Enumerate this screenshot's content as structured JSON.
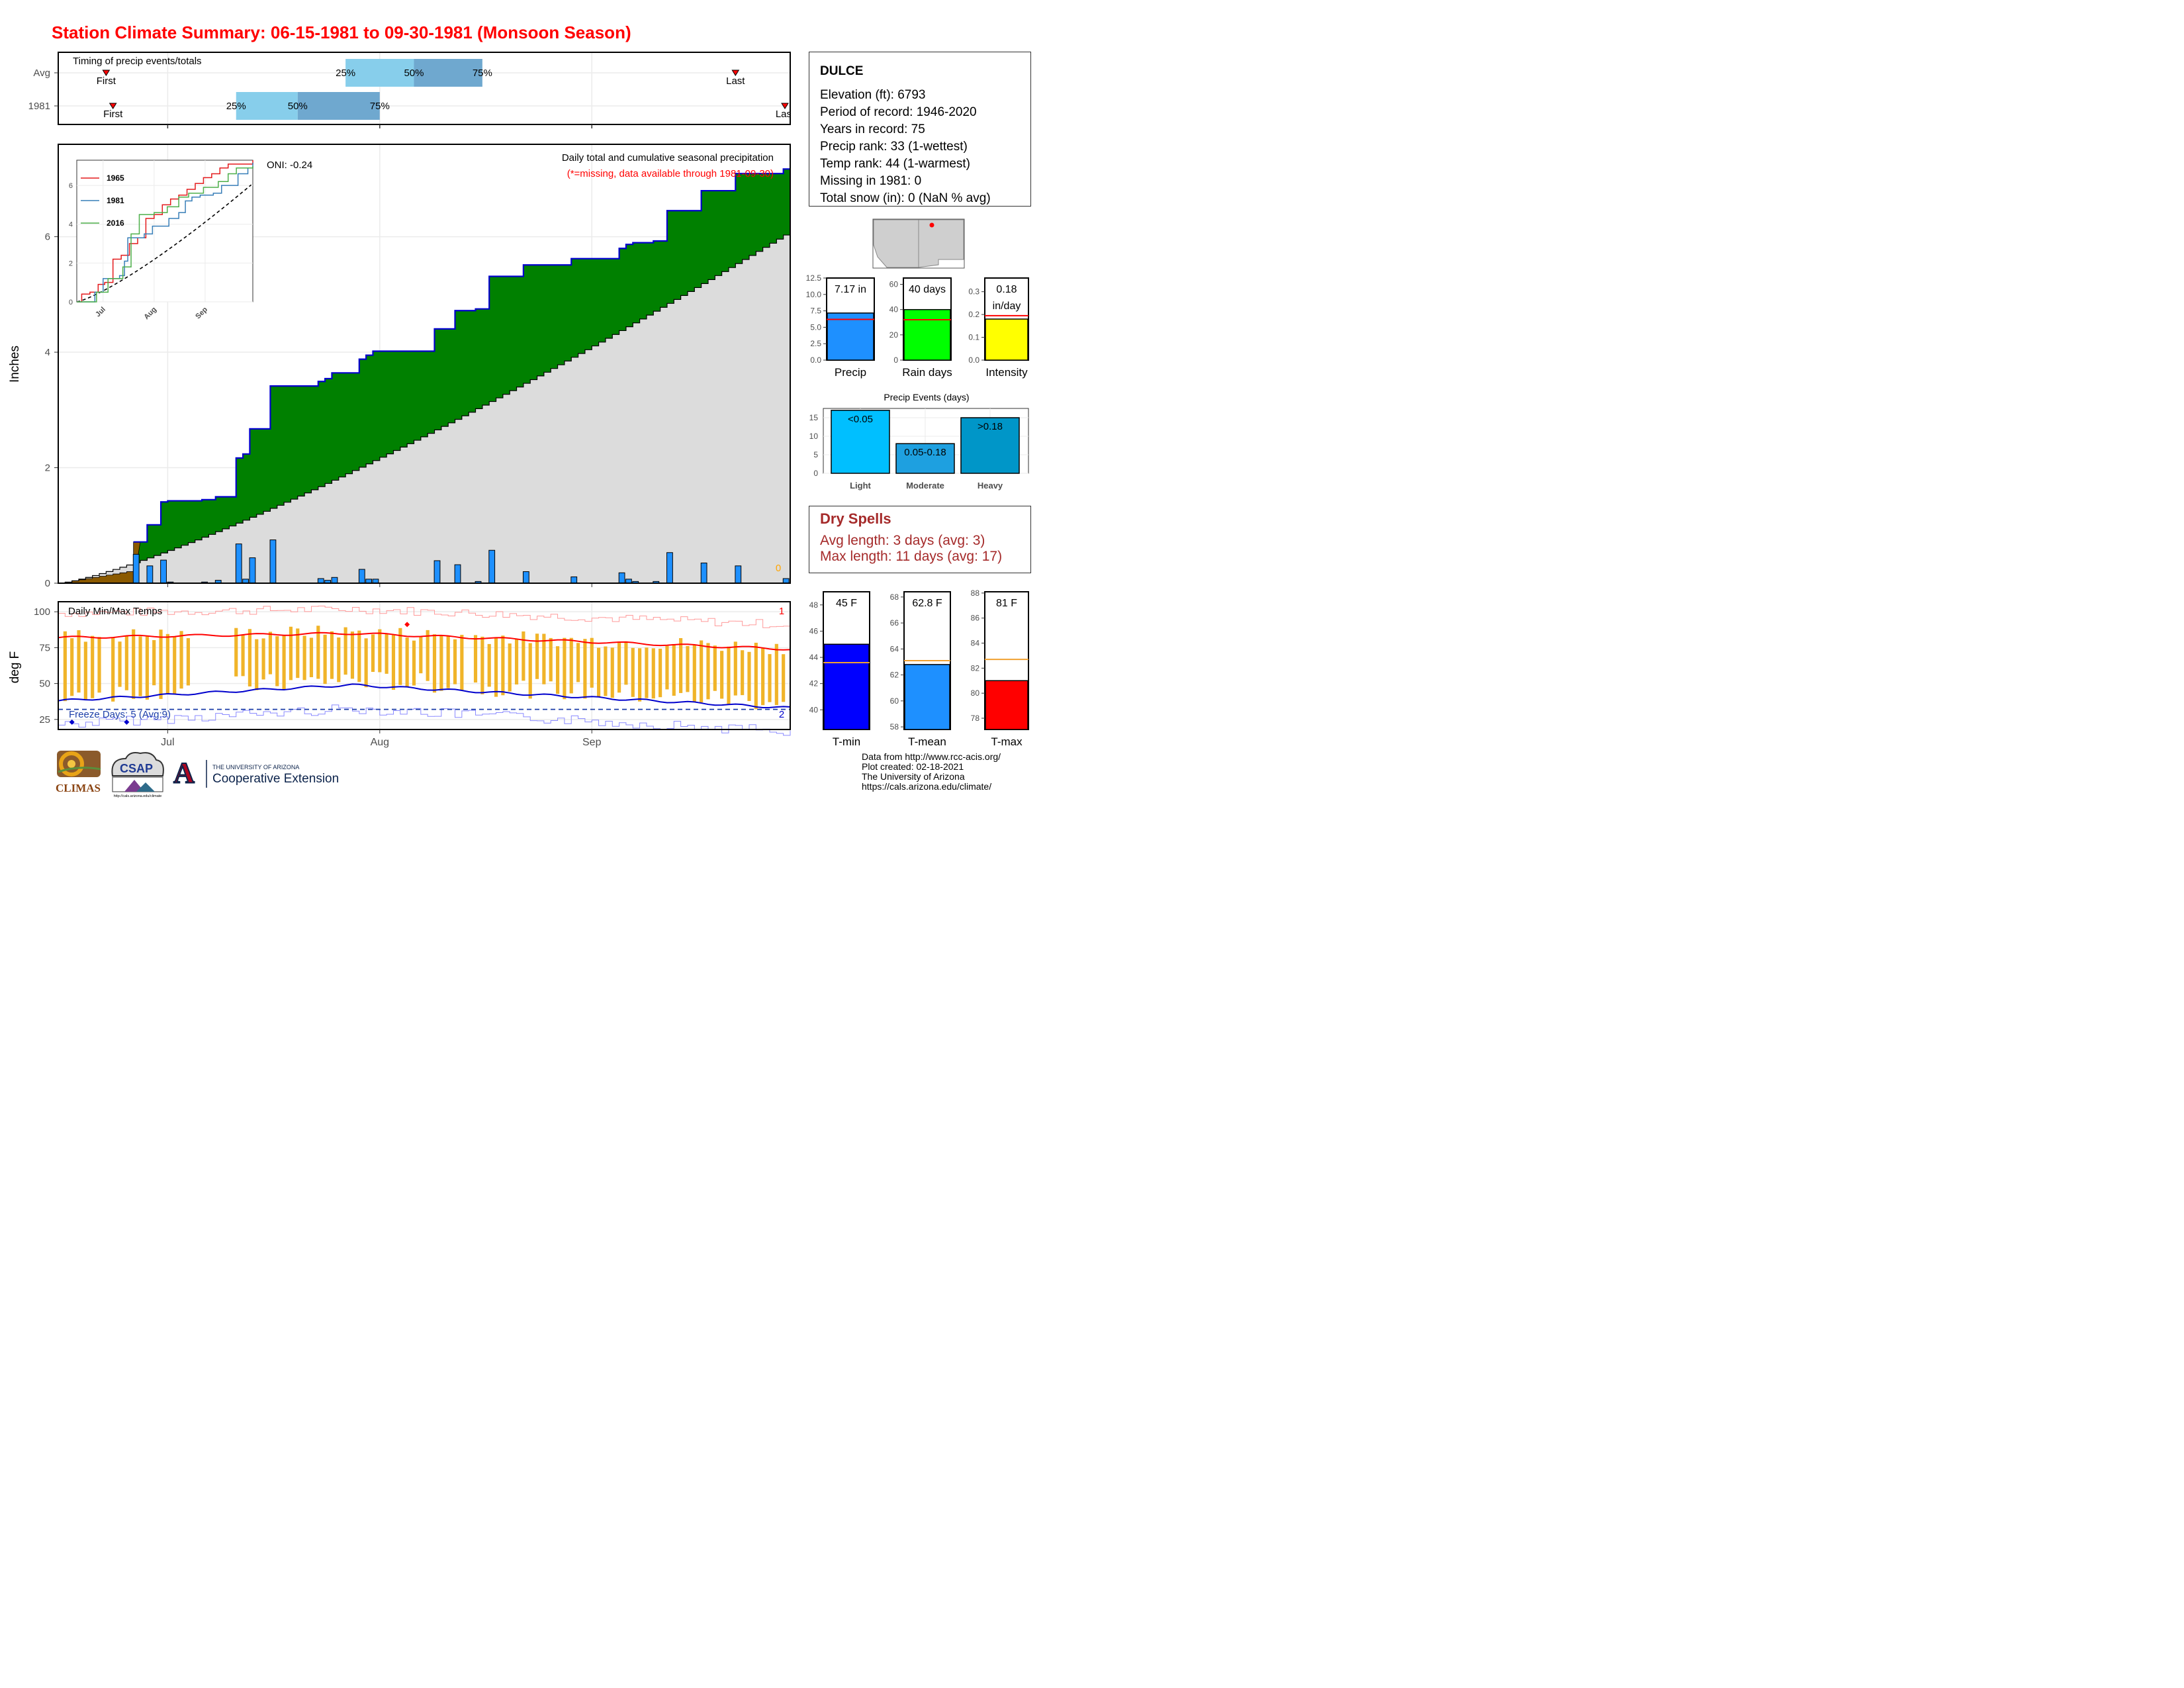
{
  "title": "Station Climate Summary: 06-15-1981 to 09-30-1981 (Monsoon Season)",
  "colors": {
    "title": "#ff0000",
    "precip_25_50": "#87ceeb",
    "precip_50_75": "#6fa8cf",
    "daily_bar": "#1e90ff",
    "above_avg_fill": "#008000",
    "avg_fill": "#dcdcdc",
    "early_fill": "#8b5a00",
    "cum_line": "#0000cd",
    "tmax_line": "#ff0000",
    "tmin_line": "#0000cd",
    "temp_bar": "#f0b429",
    "dry_spells": "#a52a2a",
    "intensity_bar": "#ffff00",
    "raindays_bar": "#00ff00",
    "light_bar": "#00bfff",
    "moderate_bar": "#1ea0e0",
    "heavy_bar": "#0096c8",
    "tmin_bar": "#0000ff",
    "tmean_bar": "#1e90ff",
    "tmax_bar": "#ff0000",
    "avg_marker": "#f0a030"
  },
  "timing": {
    "title": "Timing of precip events/totals",
    "rows": [
      {
        "label": "Avg",
        "first_label": "First",
        "last_label": "Last",
        "first": "06-22",
        "last": "09-22",
        "p25": "07-27",
        "p50": "08-06",
        "p75": "08-16",
        "p25_label": "25%",
        "p50_label": "50%",
        "p75_label": "75%"
      },
      {
        "label": "1981",
        "first_label": "First",
        "last_label": "Last",
        "first": "06-23",
        "last": "09-30",
        "p25": "07-11",
        "p50": "07-20",
        "p75": "08-01",
        "p25_label": "25%",
        "p50_label": "50%",
        "p75_label": "75%"
      }
    ]
  },
  "station": {
    "name": "DULCE",
    "elevation": "Elevation (ft): 6793",
    "period": "Period of record: 1946-2020",
    "years": "Years in record: 75",
    "precip_rank": "Precip rank: 33 (1-wettest)",
    "temp_rank": "Temp rank: 44 (1-warmest)",
    "missing": "Missing in 1981: 0",
    "snow": "Total snow (in): 0 (NaN % avg)"
  },
  "chart_data": [
    {
      "type": "area",
      "name": "precip_main",
      "title": "Daily total and cumulative seasonal precipitation",
      "subtitle": "(*=missing, data available through 1981-09-30)",
      "ylabel": "Inches",
      "ylim": [
        0,
        7.6
      ],
      "yticks": [
        0,
        2,
        4,
        6
      ],
      "x_start": "06-15",
      "x_end": "09-30",
      "xticks": [
        {
          "date": "07-01",
          "label": "Jul"
        },
        {
          "date": "08-01",
          "label": "Aug"
        },
        {
          "date": "09-01",
          "label": "Sep"
        }
      ],
      "oni": "ONI: -0.24",
      "missing_count": "0",
      "avg_cumulative": {
        "start": 0.0,
        "end": 6.1,
        "curve_exponent": 1.25
      },
      "daily_precip": [
        {
          "date": "06-26",
          "value": 0.5
        },
        {
          "date": "06-28",
          "value": 0.3
        },
        {
          "date": "06-30",
          "value": 0.4
        },
        {
          "date": "07-01",
          "value": 0.02
        },
        {
          "date": "07-06",
          "value": 0.02
        },
        {
          "date": "07-08",
          "value": 0.05
        },
        {
          "date": "07-11",
          "value": 0.68
        },
        {
          "date": "07-12",
          "value": 0.07
        },
        {
          "date": "07-13",
          "value": 0.44
        },
        {
          "date": "07-16",
          "value": 0.75
        },
        {
          "date": "07-23",
          "value": 0.08
        },
        {
          "date": "07-24",
          "value": 0.05
        },
        {
          "date": "07-25",
          "value": 0.1
        },
        {
          "date": "07-29",
          "value": 0.24
        },
        {
          "date": "07-30",
          "value": 0.07
        },
        {
          "date": "07-31",
          "value": 0.07
        },
        {
          "date": "08-09",
          "value": 0.39
        },
        {
          "date": "08-12",
          "value": 0.32
        },
        {
          "date": "08-15",
          "value": 0.03
        },
        {
          "date": "08-17",
          "value": 0.57
        },
        {
          "date": "08-22",
          "value": 0.2
        },
        {
          "date": "08-29",
          "value": 0.11
        },
        {
          "date": "09-05",
          "value": 0.18
        },
        {
          "date": "09-06",
          "value": 0.07
        },
        {
          "date": "09-07",
          "value": 0.03
        },
        {
          "date": "09-10",
          "value": 0.03
        },
        {
          "date": "09-12",
          "value": 0.53
        },
        {
          "date": "09-17",
          "value": 0.35
        },
        {
          "date": "09-22",
          "value": 0.3
        },
        {
          "date": "09-29",
          "value": 0.08
        }
      ],
      "early_cumulative": [
        {
          "date": "06-15",
          "value": 0.0
        },
        {
          "date": "06-26",
          "value": 0.22
        }
      ]
    },
    {
      "type": "line",
      "name": "inset_cumulative",
      "yticks": [
        0,
        2,
        4,
        6
      ],
      "ylim": [
        0,
        7.3
      ],
      "xticks": [
        "Jul",
        "Aug",
        "Sep"
      ],
      "series": [
        {
          "name": "1965",
          "color": "#e41a1c",
          "points": [
            [
              0,
              0
            ],
            [
              3,
              0.4
            ],
            [
              8,
              0.5
            ],
            [
              13,
              0.9
            ],
            [
              17,
              1.0
            ],
            [
              22,
              2.2
            ],
            [
              27,
              2.4
            ],
            [
              32,
              3.0
            ],
            [
              37,
              3.3
            ],
            [
              42,
              4.3
            ],
            [
              47,
              4.5
            ],
            [
              52,
              5.0
            ],
            [
              57,
              5.3
            ],
            [
              62,
              5.5
            ],
            [
              67,
              5.8
            ],
            [
              72,
              6.1
            ],
            [
              77,
              6.4
            ],
            [
              82,
              6.6
            ],
            [
              87,
              6.9
            ],
            [
              92,
              7.1
            ],
            [
              107,
              7.3
            ]
          ]
        },
        {
          "name": "1981",
          "color": "#377eb8",
          "points": [
            [
              0,
              0
            ],
            [
              11,
              0.5
            ],
            [
              16,
              1.2
            ],
            [
              26,
              1.35
            ],
            [
              29,
              2.1
            ],
            [
              31,
              3.3
            ],
            [
              41,
              3.5
            ],
            [
              46,
              3.9
            ],
            [
              56,
              4.3
            ],
            [
              62,
              4.6
            ],
            [
              66,
              5.2
            ],
            [
              70,
              5.4
            ],
            [
              75,
              5.5
            ],
            [
              83,
              5.6
            ],
            [
              88,
              6.0
            ],
            [
              98,
              6.6
            ],
            [
              104,
              6.9
            ],
            [
              107,
              7.17
            ]
          ]
        },
        {
          "name": "2016",
          "color": "#4daf4a",
          "points": [
            [
              0,
              0
            ],
            [
              12,
              0.5
            ],
            [
              19,
              1.2
            ],
            [
              28,
              1.8
            ],
            [
              33,
              3.5
            ],
            [
              38,
              4.5
            ],
            [
              47,
              4.6
            ],
            [
              55,
              4.9
            ],
            [
              62,
              5.4
            ],
            [
              68,
              5.6
            ],
            [
              77,
              5.9
            ],
            [
              86,
              6.2
            ],
            [
              92,
              6.6
            ],
            [
              97,
              6.9
            ],
            [
              107,
              7.0
            ]
          ]
        }
      ],
      "avg_line": {
        "start": 0.0,
        "end": 6.1
      }
    },
    {
      "type": "bar",
      "name": "temps_daily",
      "title": "Daily Min/Max Temps",
      "ylabel": "deg F",
      "ylim": [
        18,
        107
      ],
      "yticks": [
        25,
        50,
        75,
        100
      ],
      "freeze_label": "Freeze Days: 5 (Avg:9)",
      "record_high_count": "1",
      "record_low_count": "2",
      "tmax_avg": {
        "start": 82,
        "mid": 85,
        "end": 74
      },
      "tmin_avg": {
        "start": 38,
        "mid": 49,
        "end": 33
      },
      "freeze_line": 32,
      "days": 108
    },
    {
      "type": "bar",
      "name": "precip_total",
      "categories": [
        "Precip"
      ],
      "values": [
        7.17
      ],
      "avg": 6.2,
      "ylim": [
        0,
        12.5
      ],
      "yticks": [
        "0.0",
        "2.5",
        "5.0",
        "7.5",
        "10.0",
        "12.5"
      ],
      "label": "7.17 in",
      "color": "#1e90ff"
    },
    {
      "type": "bar",
      "name": "rain_days",
      "categories": [
        "Rain days"
      ],
      "values": [
        40
      ],
      "avg": 32,
      "ylim": [
        0,
        65
      ],
      "yticks": [
        "0",
        "20",
        "40",
        "60"
      ],
      "label": "40 days",
      "color": "#00ff00"
    },
    {
      "type": "bar",
      "name": "intensity",
      "categories": [
        "Intensity"
      ],
      "values": [
        0.18
      ],
      "avg": 0.195,
      "ylim": [
        0,
        0.36
      ],
      "yticks": [
        "0.0",
        "0.1",
        "0.2",
        "0.3"
      ],
      "label": [
        "0.18",
        "in/day"
      ],
      "color": "#ffff00"
    },
    {
      "type": "bar",
      "name": "precip_events",
      "title": "Precip Events (days)",
      "categories": [
        "Light",
        "Moderate",
        "Heavy"
      ],
      "values": [
        17,
        8,
        15
      ],
      "bar_labels": [
        "<0.05",
        "0.05-0.18",
        ">0.18"
      ],
      "ylim": [
        0,
        17.5
      ],
      "yticks": [
        "0",
        "5",
        "10",
        "15"
      ]
    },
    {
      "type": "bar",
      "name": "tmin_summary",
      "categories": [
        "T-min"
      ],
      "values": [
        45
      ],
      "avg": 43.6,
      "ylim": [
        38.5,
        49
      ],
      "yticks": [
        "40",
        "42",
        "44",
        "46",
        "48"
      ],
      "label": "45 F",
      "color": "#0000ff"
    },
    {
      "type": "bar",
      "name": "tmean_summary",
      "categories": [
        "T-mean"
      ],
      "values": [
        62.8
      ],
      "avg": 63.1,
      "ylim": [
        57.8,
        68.4
      ],
      "yticks": [
        "58",
        "60",
        "62",
        "64",
        "66",
        "68"
      ],
      "label": "62.8 F",
      "color": "#1e90ff"
    },
    {
      "type": "bar",
      "name": "tmax_summary",
      "categories": [
        "T-max"
      ],
      "values": [
        81
      ],
      "avg": 82.7,
      "ylim": [
        77.1,
        88.1
      ],
      "yticks": [
        "78",
        "80",
        "82",
        "84",
        "86",
        "88"
      ],
      "label": "81 F",
      "color": "#ff0000"
    }
  ],
  "dry_spells": {
    "title": "Dry Spells",
    "avg": "Avg length: 3 days (avg: 3)",
    "max": "Max length: 11 days (avg: 17)"
  },
  "footer": {
    "line1": "Data from http://www.rcc-acis.org/",
    "line2": "Plot created: 02-18-2021",
    "line3": "The University of Arizona",
    "line4": "https://cals.arizona.edu/climate/"
  },
  "logos": {
    "climas": "CLIMAS",
    "csap": "CSAP",
    "csap_url": "http://cals.arizona.edu/climate",
    "ua_line1": "THE UNIVERSITY OF ARIZONA",
    "ua_line2": "Cooperative Extension",
    "ua_letter": "A"
  }
}
